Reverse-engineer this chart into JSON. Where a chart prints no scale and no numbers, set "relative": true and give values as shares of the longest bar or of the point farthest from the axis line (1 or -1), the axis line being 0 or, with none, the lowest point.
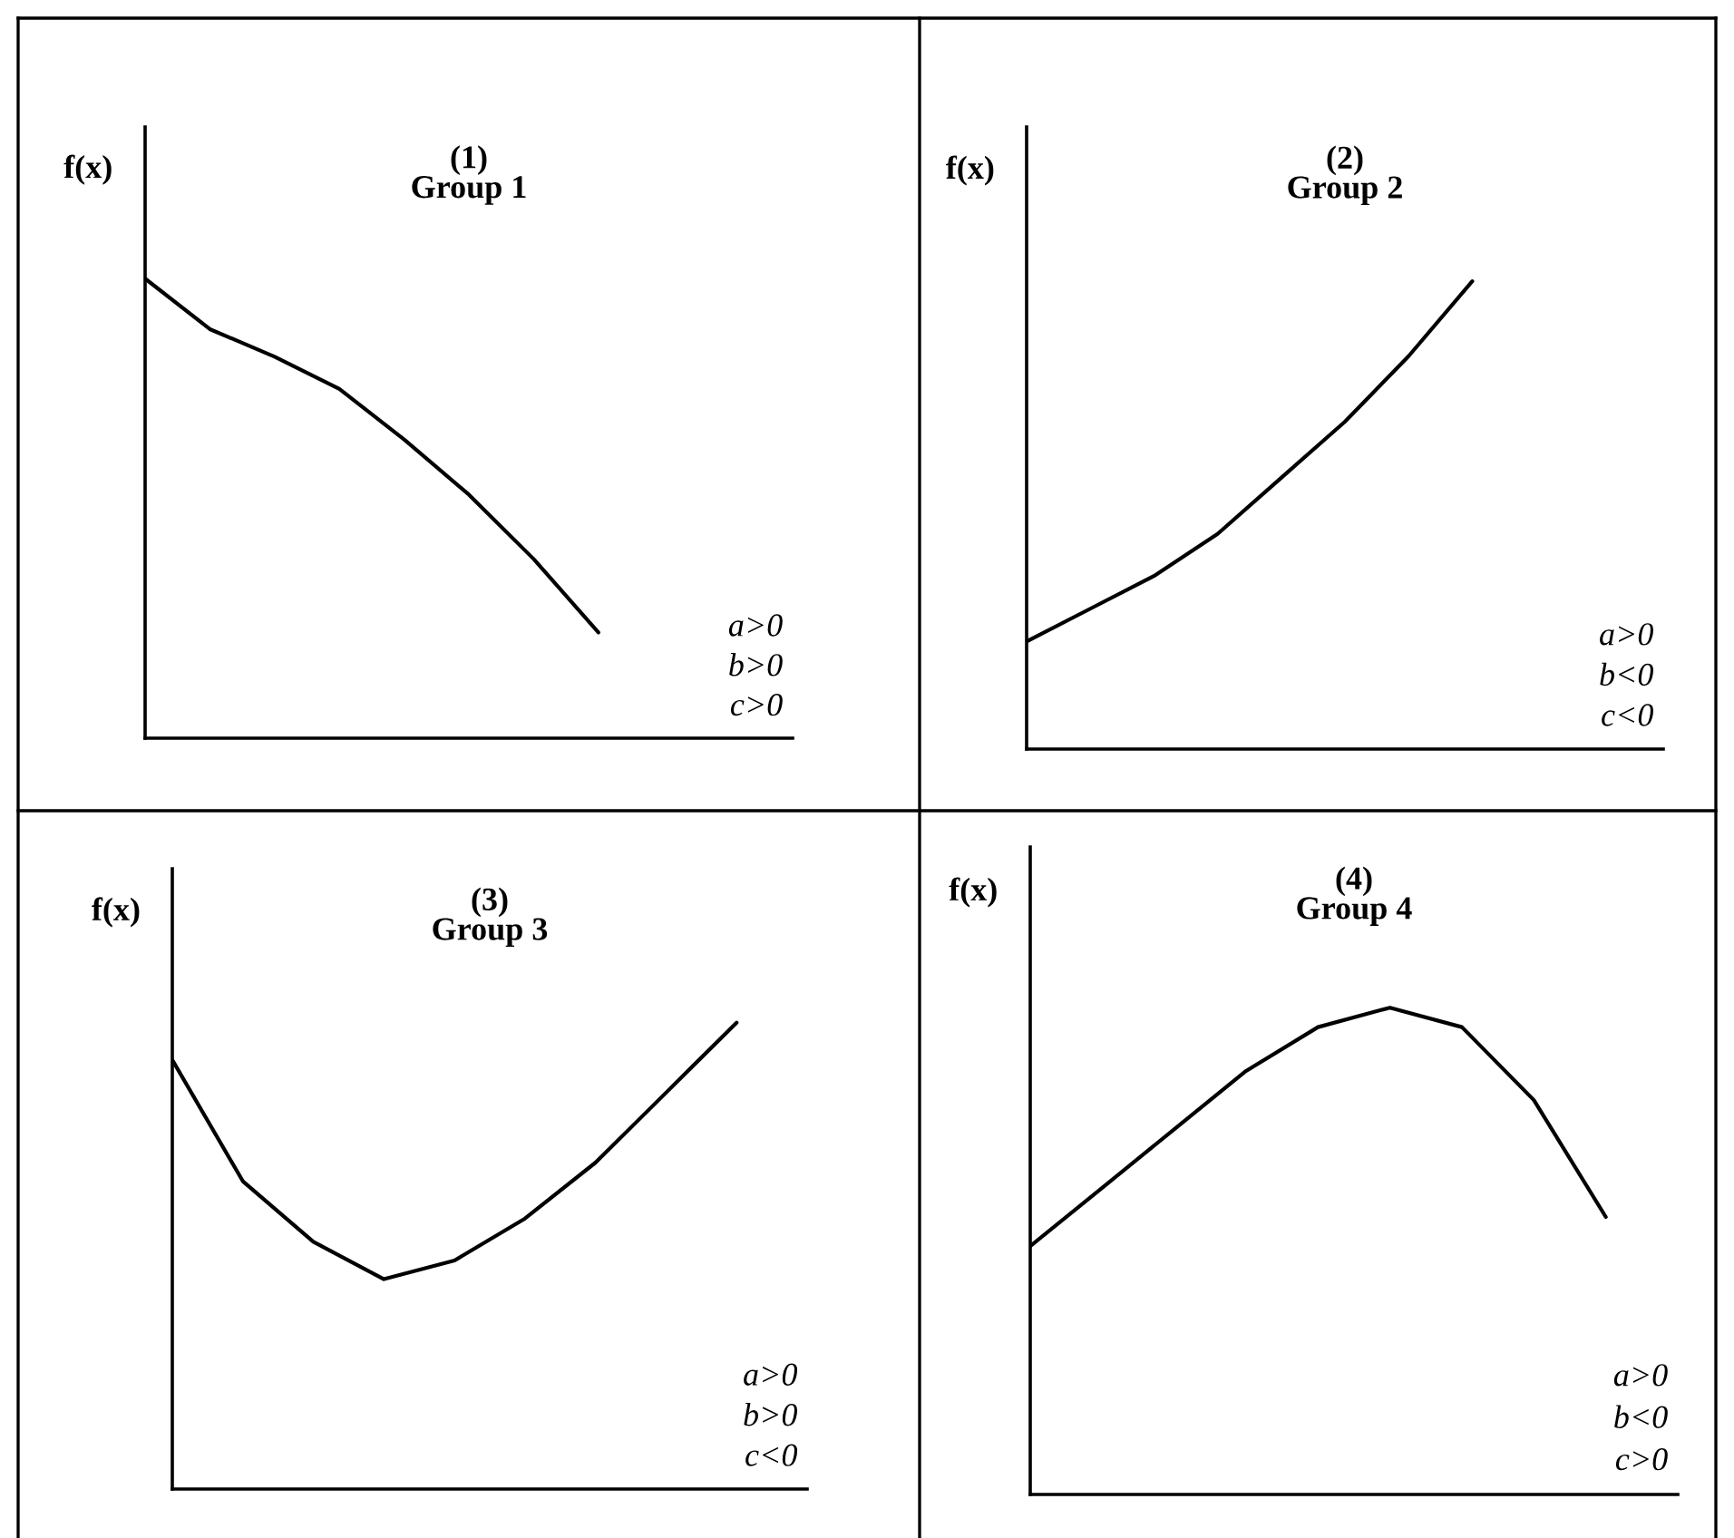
{
  "chart_data": [
    {
      "type": "line",
      "title": "(1)\nGroup 1",
      "ylabel": "f(x)",
      "relative": true,
      "color": "#000000",
      "annotations": [
        "a>0",
        "b>0",
        "c>0"
      ],
      "categories": [
        null,
        null,
        null,
        null,
        null,
        null,
        null,
        null,
        null,
        null,
        null
      ],
      "values": [
        1,
        0.89,
        0.83,
        0.76,
        0.65,
        0.53,
        0.39,
        0.23,
        null,
        null,
        null
      ]
    },
    {
      "type": "line",
      "title": "(2)\nGroup 2",
      "ylabel": "f(x)",
      "relative": true,
      "color": "#000000",
      "annotations": [
        "a>0",
        "b<0",
        "c<0"
      ],
      "categories": [
        null,
        null,
        null,
        null,
        null,
        null,
        null,
        null,
        null,
        null,
        null
      ],
      "values": [
        0.23,
        0.3,
        0.37,
        0.46,
        0.58,
        0.7,
        0.84,
        1,
        null,
        null,
        null
      ]
    },
    {
      "type": "line",
      "title": "(3)\nGroup 3",
      "ylabel": "f(x)",
      "relative": true,
      "color": "#000000",
      "annotations": [
        "a>0",
        "b>0",
        "c<0"
      ],
      "categories": [
        null,
        null,
        null,
        null,
        null,
        null,
        null,
        null,
        null,
        null
      ],
      "values": [
        0.92,
        0.66,
        0.53,
        0.45,
        0.49,
        0.58,
        0.7,
        0.85,
        1,
        null
      ]
    },
    {
      "type": "line",
      "title": "(4)\nGroup 4",
      "ylabel": "f(x)",
      "relative": true,
      "color": "#000000",
      "annotations": [
        "a>0",
        "b<0",
        "c>0"
      ],
      "categories": [
        null,
        null,
        null,
        null,
        null,
        null,
        null,
        null,
        null,
        null
      ],
      "values": [
        0.51,
        0.63,
        0.75,
        0.87,
        0.96,
        1,
        0.96,
        0.81,
        0.57,
        null
      ]
    }
  ]
}
